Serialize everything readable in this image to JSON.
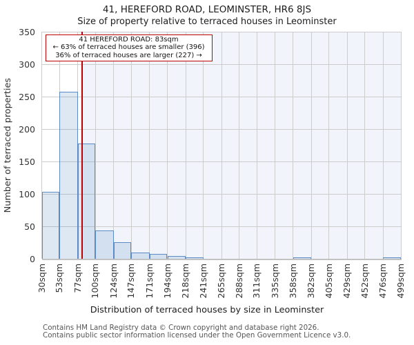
{
  "title": "41, HEREFORD ROAD, LEOMINSTER, HR6 8JS",
  "subtitle": "Size of property relative to terraced houses in Leominster",
  "annotation": {
    "line1": "41 HEREFORD ROAD: 83sqm",
    "line2": "← 63% of terraced houses are smaller (396)",
    "line3": "36% of terraced houses are larger (227) →"
  },
  "chart_data": {
    "type": "bar",
    "title": "Size of property relative to terraced houses in Leominster",
    "xlabel": "Distribution of terraced houses by size in Leominster",
    "ylabel": "Number of terraced properties",
    "bin_edges_sqm": [
      30,
      53,
      77,
      100,
      124,
      147,
      171,
      194,
      218,
      241,
      265,
      288,
      311,
      335,
      358,
      382,
      405,
      429,
      452,
      476,
      499
    ],
    "x_tick_labels": [
      "30sqm",
      "53sqm",
      "77sqm",
      "100sqm",
      "124sqm",
      "147sqm",
      "171sqm",
      "194sqm",
      "218sqm",
      "241sqm",
      "265sqm",
      "288sqm",
      "311sqm",
      "335sqm",
      "358sqm",
      "382sqm",
      "405sqm",
      "429sqm",
      "452sqm",
      "476sqm",
      "499sqm"
    ],
    "values": [
      103,
      257,
      178,
      44,
      26,
      10,
      7,
      4,
      2,
      0,
      0,
      0,
      0,
      0,
      1,
      0,
      0,
      0,
      0,
      1
    ],
    "y_ticks": [
      0,
      50,
      100,
      150,
      200,
      250,
      300,
      350
    ],
    "ylim": [
      0,
      350
    ],
    "xlim_sqm": [
      30,
      499
    ],
    "marker_sqm": 83,
    "grid": "on",
    "legend": "none",
    "colors": {
      "bar_fill": "rgba(91,138,197,0.20)",
      "bar_edge": "#5b8ac5",
      "marker_line": "#bb0000",
      "annotation_border": "#bb0000",
      "shade_right_of_marker": "#f1f5fb",
      "gridline": "#cccccc",
      "spine": "#c2c2c2",
      "figure_background": "#ffffff"
    }
  },
  "footer": {
    "line1": "Contains HM Land Registry data © Crown copyright and database right 2026.",
    "line2": "Contains public sector information licensed under the Open Government Licence v3.0."
  }
}
